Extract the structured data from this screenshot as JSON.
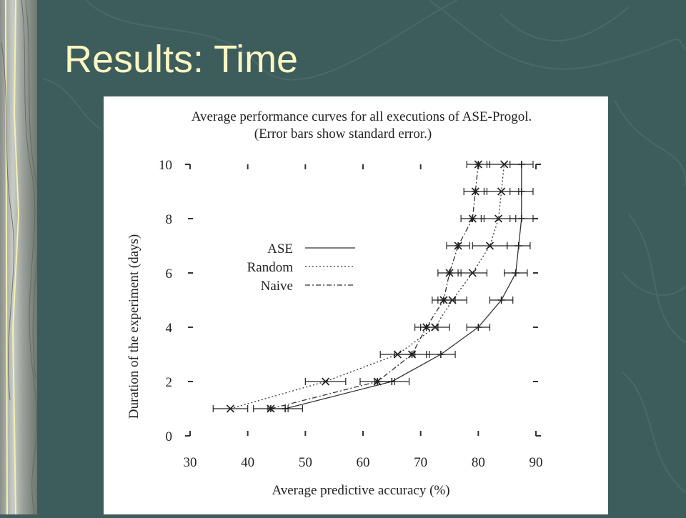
{
  "slide": {
    "title": "Results: Time"
  },
  "chart_data": {
    "type": "line",
    "title": "Average performance curves for all executions of ASE-Progol.",
    "subtitle": "(Error bars show standard error.)",
    "xlabel": "Average predictive accuracy (%)",
    "ylabel": "Duration of the experiment (days)",
    "xlim": [
      30,
      90
    ],
    "ylim": [
      0,
      10
    ],
    "x_ticks": [
      "30",
      "40",
      "50",
      "60",
      "70",
      "80",
      "90"
    ],
    "y_ticks": [
      "0",
      "2",
      "4",
      "6",
      "8",
      "10"
    ],
    "legend_position": "left-middle",
    "grid": false,
    "series": [
      {
        "name": "ASE",
        "style": "solid",
        "marker": "+",
        "points": [
          {
            "y": 1,
            "x": 46.5,
            "err": 3
          },
          {
            "y": 2,
            "x": 65,
            "err": 3
          },
          {
            "y": 3,
            "x": 73.5,
            "err": 2.5
          },
          {
            "y": 4,
            "x": 80,
            "err": 2
          },
          {
            "y": 5,
            "x": 84,
            "err": 2
          },
          {
            "y": 6,
            "x": 86.5,
            "err": 2
          },
          {
            "y": 7,
            "x": 87,
            "err": 2
          },
          {
            "y": 8,
            "x": 87.5,
            "err": 2
          },
          {
            "y": 9,
            "x": 87.5,
            "err": 2
          },
          {
            "y": 10,
            "x": 87.5,
            "err": 2
          }
        ]
      },
      {
        "name": "Random",
        "style": "dotted",
        "marker": "x",
        "points": [
          {
            "y": 1,
            "x": 37,
            "err": 3
          },
          {
            "y": 2,
            "x": 53.5,
            "err": 3.5
          },
          {
            "y": 3,
            "x": 66,
            "err": 3
          },
          {
            "y": 4,
            "x": 72.5,
            "err": 2.5
          },
          {
            "y": 5,
            "x": 75.5,
            "err": 2.5
          },
          {
            "y": 6,
            "x": 79,
            "err": 2.5
          },
          {
            "y": 7,
            "x": 82,
            "err": 3
          },
          {
            "y": 8,
            "x": 83.5,
            "err": 3
          },
          {
            "y": 9,
            "x": 84,
            "err": 3
          },
          {
            "y": 10,
            "x": 84.5,
            "err": 3
          }
        ]
      },
      {
        "name": "Naive",
        "style": "dash-dot",
        "marker": "*",
        "points": [
          {
            "y": 1,
            "x": 44,
            "err": 3
          },
          {
            "y": 2,
            "x": 62.5,
            "err": 3
          },
          {
            "y": 3,
            "x": 68.5,
            "err": 3
          },
          {
            "y": 4,
            "x": 71,
            "err": 2
          },
          {
            "y": 5,
            "x": 74,
            "err": 2
          },
          {
            "y": 6,
            "x": 75,
            "err": 2
          },
          {
            "y": 7,
            "x": 76.5,
            "err": 2
          },
          {
            "y": 8,
            "x": 79,
            "err": 2
          },
          {
            "y": 9,
            "x": 79.5,
            "err": 2
          },
          {
            "y": 10,
            "x": 80,
            "err": 2
          }
        ]
      }
    ]
  }
}
